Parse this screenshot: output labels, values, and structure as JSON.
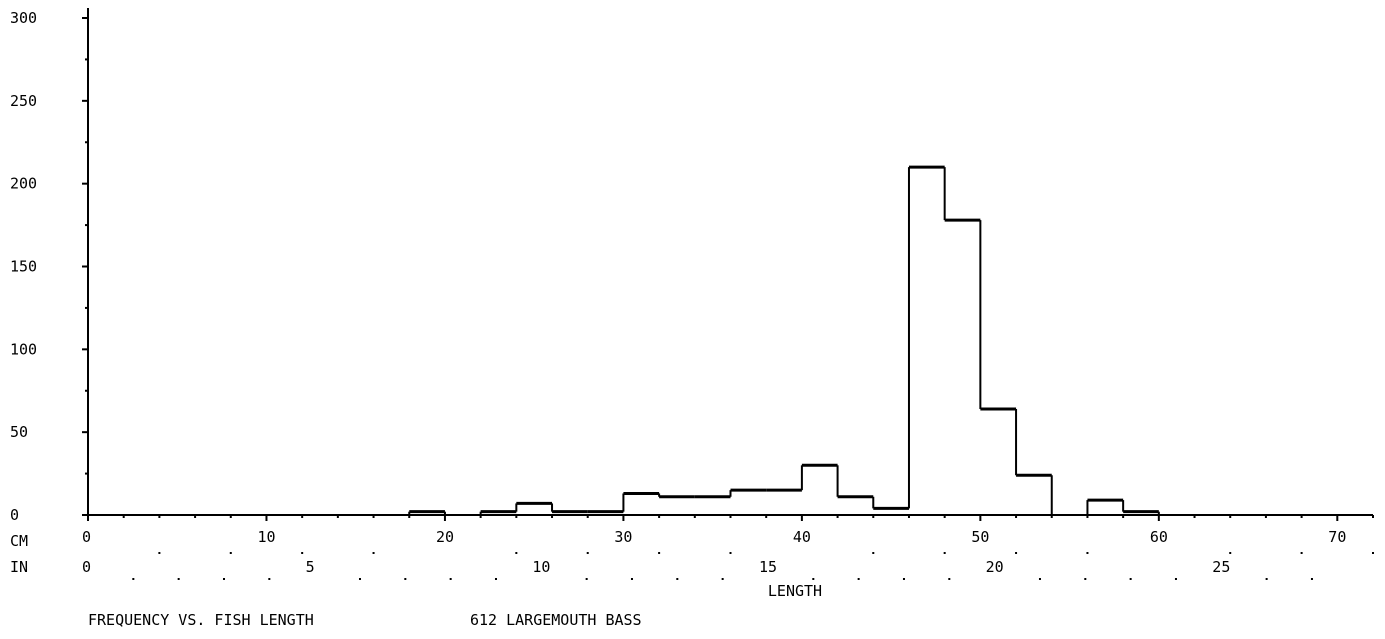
{
  "chart_data": {
    "type": "bar",
    "subtype": "histogram",
    "title": "FREQUENCY VS. FISH LENGTH",
    "subtitle": "612 LARGEMOUTH BASS",
    "xlabel": "LENGTH",
    "x_unit_rows": [
      "CM",
      "IN"
    ],
    "x_ticks_cm": [
      0,
      10,
      20,
      30,
      40,
      50,
      60,
      70
    ],
    "x_ticks_in": [
      0,
      5,
      10,
      15,
      20,
      25
    ],
    "y_ticks": [
      0,
      50,
      100,
      150,
      200,
      250,
      300
    ],
    "xlim_cm": [
      0,
      72
    ],
    "ylim": [
      0,
      300
    ],
    "bin_width_cm": 2,
    "bins": [
      {
        "start_cm": 18,
        "value": 2
      },
      {
        "start_cm": 20,
        "value": 0
      },
      {
        "start_cm": 22,
        "value": 2
      },
      {
        "start_cm": 24,
        "value": 7
      },
      {
        "start_cm": 26,
        "value": 2
      },
      {
        "start_cm": 28,
        "value": 2
      },
      {
        "start_cm": 30,
        "value": 13
      },
      {
        "start_cm": 32,
        "value": 11
      },
      {
        "start_cm": 34,
        "value": 11
      },
      {
        "start_cm": 36,
        "value": 15
      },
      {
        "start_cm": 38,
        "value": 15
      },
      {
        "start_cm": 40,
        "value": 30
      },
      {
        "start_cm": 42,
        "value": 11
      },
      {
        "start_cm": 44,
        "value": 4
      },
      {
        "start_cm": 46,
        "value": 210
      },
      {
        "start_cm": 48,
        "value": 178
      },
      {
        "start_cm": 50,
        "value": 64
      },
      {
        "start_cm": 52,
        "value": 24
      },
      {
        "start_cm": 54,
        "value": 0
      },
      {
        "start_cm": 56,
        "value": 9
      },
      {
        "start_cm": 58,
        "value": 2
      }
    ],
    "grid": false,
    "legend": "none",
    "line_color": "#000000",
    "background": "#ffffff"
  }
}
